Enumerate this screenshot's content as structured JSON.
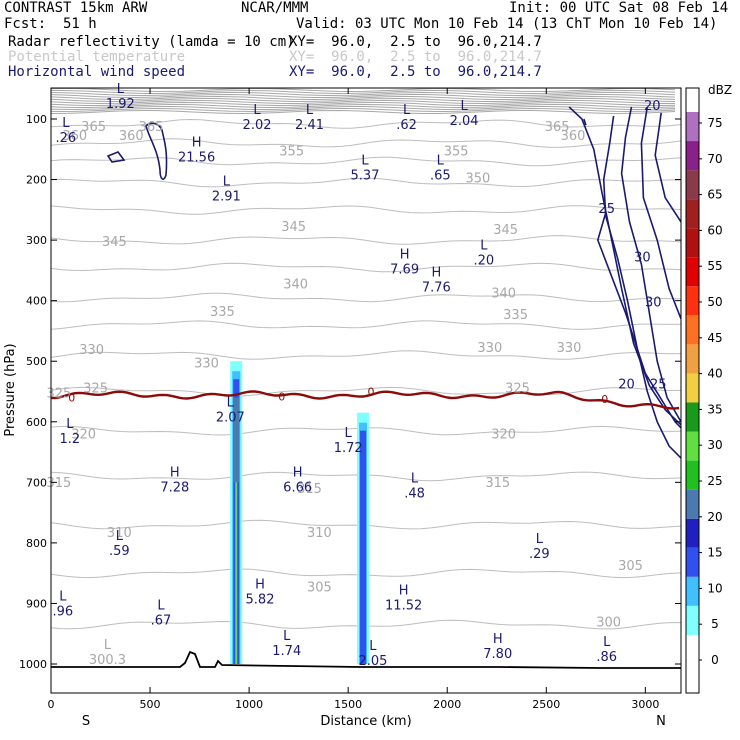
{
  "header": {
    "model": "CONTRAST 15km ARW",
    "org": "NCAR/MMM",
    "init": "Init: 00 UTC Sat 08 Feb 14",
    "fcst_label": "Fcst:",
    "fcst_value": "51 h",
    "valid": "Valid: 03 UTC Mon 10 Feb 14 (13 ChT Mon 10 Feb 14)"
  },
  "fields": [
    {
      "name": "Radar reflectivity (lamda = 10 cm)",
      "xy": "XY=  96.0,  2.5 to  96.0,214.7",
      "color": "#000000"
    },
    {
      "name": "Potential temperature",
      "xy": "XY=  96.0,  2.5 to  96.0,214.7",
      "color": "#c8c8c8"
    },
    {
      "name": "Horizontal wind speed",
      "xy": "XY=  96.0,  2.5 to  96.0,214.7",
      "color": "#1a1a70"
    }
  ],
  "chart_data": {
    "type": "cross-section",
    "xlabel": "Distance (km)",
    "ylabel": "Pressure (hPa)",
    "xlim": [
      0,
      3180
    ],
    "ylim": [
      1060,
      55
    ],
    "x_ticks": [
      0,
      500,
      1000,
      1500,
      2000,
      2500,
      3000
    ],
    "x_tick_labels": [
      "0",
      "500",
      "1000",
      "1500",
      "2000",
      "2500",
      "3000"
    ],
    "y_ticks": [
      100,
      200,
      300,
      400,
      500,
      600,
      700,
      800,
      900,
      1000
    ],
    "y_tick_labels": [
      "100",
      "200",
      "300",
      "400",
      "500",
      "600",
      "700",
      "800",
      "900",
      "1000"
    ],
    "left_end_label": "S",
    "right_end_label": "N",
    "colorbar": {
      "unit": "dBZ",
      "levels": [
        "0",
        "5",
        "10",
        "15",
        "20",
        "25",
        "30",
        "35",
        "40",
        "45",
        "50",
        "55",
        "60",
        "65",
        "70",
        "75"
      ],
      "colors": [
        "#ffffff",
        "#ffffff",
        "#80ffff",
        "#40c0ff",
        "#3050f0",
        "#2020c0",
        "#4a7ab0",
        "#20c020",
        "#60e040",
        "#1a9a1a",
        "#f0d040",
        "#f0a040",
        "#ff7020",
        "#ff3010",
        "#e00000",
        "#b01010",
        "#a02020",
        "#8a3a4a",
        "#8a208a",
        "#b070c0"
      ]
    },
    "theta_labels": [
      {
        "text": "365",
        "x": 215,
        "p": 120
      },
      {
        "text": "360",
        "x": 120,
        "p": 135
      },
      {
        "text": "360",
        "x": 405,
        "p": 135
      },
      {
        "text": "365",
        "x": 505,
        "p": 120
      },
      {
        "text": "365",
        "x": 2555,
        "p": 120
      },
      {
        "text": "360",
        "x": 2635,
        "p": 135
      },
      {
        "text": "355",
        "x": 1215,
        "p": 160
      },
      {
        "text": "355",
        "x": 2045,
        "p": 160
      },
      {
        "text": "350",
        "x": 2155,
        "p": 205
      },
      {
        "text": "345",
        "x": 320,
        "p": 310
      },
      {
        "text": "345",
        "x": 1225,
        "p": 285
      },
      {
        "text": "345",
        "x": 2295,
        "p": 290
      },
      {
        "text": "340",
        "x": 1235,
        "p": 380
      },
      {
        "text": "340",
        "x": 2285,
        "p": 395
      },
      {
        "text": "335",
        "x": 865,
        "p": 425
      },
      {
        "text": "335",
        "x": 2345,
        "p": 430
      },
      {
        "text": "330",
        "x": 205,
        "p": 488
      },
      {
        "text": "330",
        "x": 785,
        "p": 510
      },
      {
        "text": "330",
        "x": 2215,
        "p": 485
      },
      {
        "text": "330",
        "x": 2615,
        "p": 485
      },
      {
        "text": "325",
        "x": 40,
        "p": 560
      },
      {
        "text": "325",
        "x": 225,
        "p": 552
      },
      {
        "text": "325",
        "x": 2355,
        "p": 552
      },
      {
        "text": "320",
        "x": 165,
        "p": 628
      },
      {
        "text": "320",
        "x": 2285,
        "p": 628
      },
      {
        "text": "315",
        "x": 40,
        "p": 708
      },
      {
        "text": "315",
        "x": 1305,
        "p": 718
      },
      {
        "text": "315",
        "x": 2255,
        "p": 708
      },
      {
        "text": "310",
        "x": 1355,
        "p": 790
      },
      {
        "text": "310",
        "x": 345,
        "p": 790
      },
      {
        "text": "305",
        "x": 1355,
        "p": 880
      },
      {
        "text": "305",
        "x": 2925,
        "p": 845
      },
      {
        "text": "300",
        "x": 2815,
        "p": 938
      }
    ],
    "wind_labels": [
      {
        "text": "20",
        "x": 3035,
        "p": 85
      },
      {
        "text": "25",
        "x": 2805,
        "p": 255
      },
      {
        "text": "30",
        "x": 2985,
        "p": 335
      },
      {
        "text": "30",
        "x": 3040,
        "p": 410
      },
      {
        "text": "20",
        "x": 2905,
        "p": 545
      },
      {
        "text": "25",
        "x": 3065,
        "p": 545
      }
    ],
    "zero_labels": [
      {
        "text": "0",
        "x": 105,
        "p": 560
      },
      {
        "text": "0",
        "x": 1165,
        "p": 558
      },
      {
        "text": "0",
        "x": 1615,
        "p": 550
      },
      {
        "text": "0",
        "x": 2795,
        "p": 562
      }
    ],
    "extrema": [
      {
        "type": "L",
        "value": "1.92",
        "x": 350
      },
      {
        "type": "L",
        "value": ".26",
        "x": 75
      },
      {
        "type": "L",
        "value": "2.02",
        "x": 1040
      },
      {
        "type": "L",
        "value": "2.41",
        "x": 1305
      },
      {
        "type": "L",
        "value": ".62",
        "x": 1795
      },
      {
        "type": "L",
        "value": "2.04",
        "x": 2085
      },
      {
        "type": "H",
        "value": "21.56",
        "x": 735
      },
      {
        "type": "L",
        "value": "5.37",
        "x": 1585
      },
      {
        "type": "L",
        "value": ".65",
        "x": 1965
      },
      {
        "type": "L",
        "value": "2.91",
        "x": 885
      },
      {
        "type": "L",
        "value": ".20",
        "x": 2185
      },
      {
        "type": "H",
        "value": "7.69",
        "x": 1785
      },
      {
        "type": "H",
        "value": "7.76",
        "x": 1945
      },
      {
        "type": "L",
        "value": "2.07",
        "x": 905
      },
      {
        "type": "L",
        "value": "1.2",
        "x": 95
      },
      {
        "type": "L",
        "value": "1.72",
        "x": 1500
      },
      {
        "type": "H",
        "value": "7.28",
        "x": 625
      },
      {
        "type": "H",
        "value": "6.66",
        "x": 1245
      },
      {
        "type": "L",
        "value": ".48",
        "x": 1835
      },
      {
        "type": "L",
        "value": ".59",
        "x": 345
      },
      {
        "type": "L",
        "value": ".29",
        "x": 2465
      },
      {
        "type": "H",
        "value": "5.82",
        "x": 1055
      },
      {
        "type": "H",
        "value": "11.52",
        "x": 1780
      },
      {
        "type": "L",
        "value": ".96",
        "x": 60
      },
      {
        "type": "L",
        "value": ".67",
        "x": 555
      },
      {
        "type": "L",
        "value": "1.74",
        "x": 1190
      },
      {
        "type": "L",
        "value": "2.05",
        "x": 1625
      },
      {
        "type": "H",
        "value": "7.80",
        "x": 2255
      },
      {
        "type": "L",
        "value": ".86",
        "x": 2805
      },
      {
        "type": "L",
        "value": "300.3",
        "x": 285,
        "theta": true
      }
    ],
    "extrema_p": [
      72,
      128,
      107,
      107,
      107,
      100,
      160,
      190,
      190,
      225,
      330,
      345,
      375,
      590,
      625,
      640,
      705,
      705,
      715,
      810,
      815,
      890,
      900,
      910,
      925,
      975,
      992,
      980,
      985,
      990
    ],
    "reflectivity_columns": [
      {
        "x_center": 935,
        "top_p": 500,
        "bottom_p": 1000
      },
      {
        "x_center": 1575,
        "top_p": 585,
        "bottom_p": 1000
      }
    ]
  }
}
